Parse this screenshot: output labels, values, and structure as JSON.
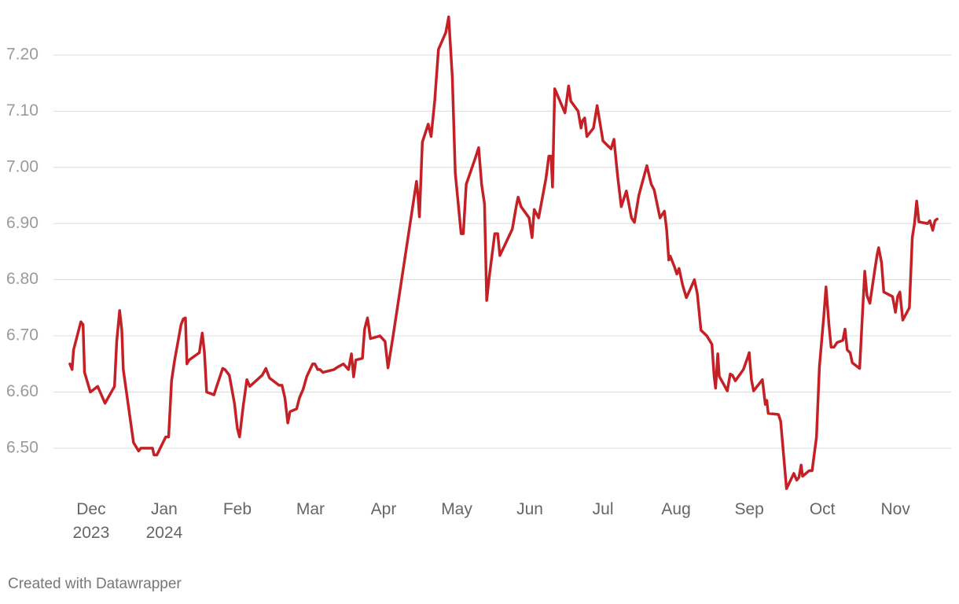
{
  "chart_data": {
    "type": "line",
    "color": "#c42127",
    "grid": true,
    "x": [
      -0.29,
      -0.26,
      -0.24,
      -0.14,
      -0.11,
      -0.09,
      -0.01,
      0.09,
      0.19,
      0.32,
      0.35,
      0.39,
      0.42,
      0.44,
      0.58,
      0.65,
      0.68,
      0.84,
      0.86,
      0.9,
      1.02,
      1.06,
      1.1,
      1.14,
      1.23,
      1.26,
      1.29,
      1.31,
      1.34,
      1.48,
      1.52,
      1.55,
      1.58,
      1.68,
      1.73,
      1.8,
      1.83,
      1.89,
      1.96,
      2.0,
      2.03,
      2.08,
      2.13,
      2.17,
      2.34,
      2.39,
      2.44,
      2.57,
      2.61,
      2.65,
      2.69,
      2.72,
      2.81,
      2.85,
      2.9,
      2.95,
      3.03,
      3.06,
      3.1,
      3.13,
      3.17,
      3.32,
      3.38,
      3.45,
      3.52,
      3.56,
      3.59,
      3.62,
      3.71,
      3.74,
      3.78,
      3.82,
      3.95,
      4.02,
      4.06,
      4.13,
      4.45,
      4.47,
      4.49,
      4.53,
      4.61,
      4.65,
      4.7,
      4.75,
      4.85,
      4.89,
      4.94,
      4.98,
      5.06,
      5.09,
      5.13,
      5.25,
      5.3,
      5.34,
      5.38,
      5.41,
      5.44,
      5.52,
      5.56,
      5.59,
      5.76,
      5.82,
      5.84,
      5.88,
      5.99,
      6.03,
      6.06,
      6.12,
      6.22,
      6.26,
      6.29,
      6.31,
      6.34,
      6.48,
      6.53,
      6.56,
      6.66,
      6.7,
      6.72,
      6.75,
      6.78,
      6.87,
      6.92,
      7.0,
      7.11,
      7.15,
      7.2,
      7.25,
      7.32,
      7.39,
      7.43,
      7.49,
      7.6,
      7.66,
      7.7,
      7.78,
      7.84,
      7.87,
      7.9,
      7.92,
      7.98,
      8.01,
      8.04,
      8.09,
      8.14,
      8.19,
      8.25,
      8.29,
      8.34,
      8.42,
      8.49,
      8.52,
      8.54,
      8.57,
      8.59,
      8.7,
      8.74,
      8.77,
      8.81,
      8.92,
      8.98,
      9.0,
      9.03,
      9.06,
      9.18,
      9.22,
      9.24,
      9.26,
      9.4,
      9.43,
      9.51,
      9.61,
      9.65,
      9.68,
      9.71,
      9.73,
      9.82,
      9.86,
      9.92,
      9.96,
      10.02,
      10.05,
      10.09,
      10.12,
      10.16,
      10.2,
      10.28,
      10.31,
      10.34,
      10.38,
      10.41,
      10.51,
      10.55,
      10.58,
      10.61,
      10.65,
      10.72,
      10.75,
      10.77,
      10.81,
      10.84,
      10.96,
      11.0,
      11.03,
      11.06,
      11.1,
      11.19,
      11.23,
      11.26,
      11.29,
      11.32,
      11.44,
      11.47,
      11.51,
      11.54,
      11.57
    ],
    "values": [
      6.65,
      6.64,
      6.675,
      6.725,
      6.72,
      6.635,
      6.6,
      6.61,
      6.58,
      6.61,
      6.69,
      6.745,
      6.71,
      6.64,
      6.51,
      6.495,
      6.5,
      6.5,
      6.488,
      6.488,
      6.52,
      6.52,
      6.62,
      6.655,
      6.72,
      6.73,
      6.732,
      6.65,
      6.657,
      6.67,
      6.705,
      6.67,
      6.6,
      6.595,
      6.615,
      6.642,
      6.64,
      6.63,
      6.58,
      6.535,
      6.52,
      6.575,
      6.622,
      6.61,
      6.63,
      6.642,
      6.625,
      6.612,
      6.612,
      6.59,
      6.545,
      6.565,
      6.57,
      6.59,
      6.605,
      6.628,
      6.65,
      6.65,
      6.64,
      6.64,
      6.635,
      6.64,
      6.645,
      6.65,
      6.64,
      6.668,
      6.627,
      6.657,
      6.66,
      6.712,
      6.732,
      6.695,
      6.7,
      6.69,
      6.643,
      6.7,
      6.975,
      6.95,
      6.912,
      7.045,
      7.077,
      7.055,
      7.12,
      7.21,
      7.24,
      7.268,
      7.16,
      6.99,
      6.882,
      6.882,
      6.97,
      7.015,
      7.035,
      6.97,
      6.935,
      6.763,
      6.8,
      6.882,
      6.882,
      6.843,
      6.89,
      6.935,
      6.947,
      6.93,
      6.91,
      6.875,
      6.925,
      6.91,
      6.98,
      7.02,
      7.02,
      6.965,
      7.14,
      7.097,
      7.145,
      7.118,
      7.1,
      7.07,
      7.083,
      7.088,
      7.055,
      7.07,
      7.11,
      7.047,
      7.033,
      7.05,
      6.985,
      6.93,
      6.958,
      6.91,
      6.902,
      6.95,
      7.003,
      6.97,
      6.96,
      6.91,
      6.922,
      6.89,
      6.835,
      6.842,
      6.822,
      6.81,
      6.82,
      6.79,
      6.768,
      6.782,
      6.8,
      6.775,
      6.71,
      6.7,
      6.685,
      6.628,
      6.607,
      6.668,
      6.628,
      6.602,
      6.632,
      6.63,
      6.62,
      6.64,
      6.662,
      6.67,
      6.622,
      6.602,
      6.622,
      6.578,
      6.585,
      6.562,
      6.56,
      6.548,
      6.428,
      6.455,
      6.443,
      6.448,
      6.47,
      6.45,
      6.46,
      6.46,
      6.52,
      6.645,
      6.735,
      6.787,
      6.72,
      6.68,
      6.68,
      6.688,
      6.692,
      6.712,
      6.675,
      6.67,
      6.652,
      6.642,
      6.742,
      6.815,
      6.772,
      6.758,
      6.82,
      6.845,
      6.857,
      6.83,
      6.778,
      6.77,
      6.742,
      6.77,
      6.778,
      6.728,
      6.75,
      6.875,
      6.9,
      6.94,
      6.903,
      6.9,
      6.905,
      6.888,
      6.905,
      6.908
    ],
    "xlim": [
      -0.3,
      11.6
    ],
    "xticks": [
      {
        "value": 0,
        "label": "Dec 2023"
      },
      {
        "value": 1,
        "label": "Jan 2024"
      },
      {
        "value": 2,
        "label": "Feb"
      },
      {
        "value": 3,
        "label": "Mar"
      },
      {
        "value": 4,
        "label": "Apr"
      },
      {
        "value": 5,
        "label": "May"
      },
      {
        "value": 6,
        "label": "Jun"
      },
      {
        "value": 7,
        "label": "Jul"
      },
      {
        "value": 8,
        "label": "Aug"
      },
      {
        "value": 9,
        "label": "Sep"
      },
      {
        "value": 10,
        "label": "Oct"
      },
      {
        "value": 11,
        "label": "Nov"
      }
    ],
    "ylim": [
      6.42,
      7.27
    ],
    "yticks": [
      {
        "value": 6.5,
        "label": "6.50"
      },
      {
        "value": 6.6,
        "label": "6.60"
      },
      {
        "value": 6.7,
        "label": "6.70"
      },
      {
        "value": 6.8,
        "label": "6.80"
      },
      {
        "value": 6.9,
        "label": "6.90"
      },
      {
        "value": 7.0,
        "label": "7.00"
      },
      {
        "value": 7.1,
        "label": "7.10"
      },
      {
        "value": 7.2,
        "label": "7.20"
      }
    ],
    "footer": "Created with Datawrapper"
  }
}
